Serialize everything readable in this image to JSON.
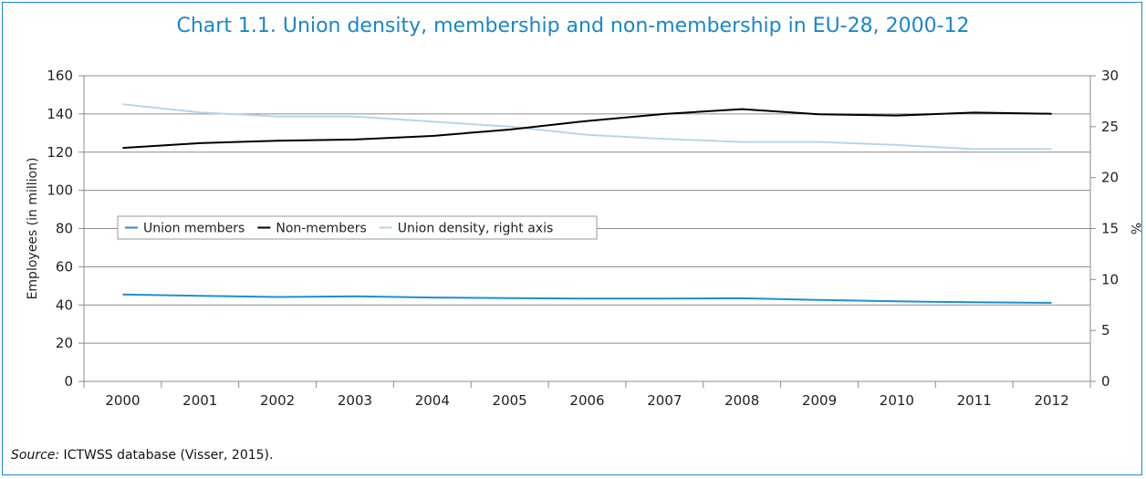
{
  "title": "Chart 1.1. Union density, membership and non-membership in EU-28, 2000-12",
  "source": {
    "label": "Source:",
    "text": " ICTWSS database (Visser, 2015)."
  },
  "colors": {
    "frame": "#1a86c8",
    "title": "#1a86c8",
    "union_members": "#1f8fd1",
    "non_members": "#000000",
    "union_density": "#b6d6ea",
    "grid": "#8c8c8c"
  },
  "chart_data": {
    "type": "line",
    "title": "Chart 1.1. Union density, membership and non-membership in EU-28, 2000-12",
    "categories": [
      "2000",
      "2001",
      "2002",
      "2003",
      "2004",
      "2005",
      "2006",
      "2007",
      "2008",
      "2009",
      "2010",
      "2011",
      "2012"
    ],
    "ylabel": "Employees (in million)",
    "y2label": "%",
    "ylim": [
      0,
      160
    ],
    "y2lim": [
      0,
      30
    ],
    "yticks": [
      "0",
      "20",
      "40",
      "60",
      "80",
      "100",
      "120",
      "140",
      "160"
    ],
    "y2ticks": [
      "0",
      "5",
      "10",
      "15",
      "20",
      "25",
      "30"
    ],
    "grid": true,
    "legend_position": "middle-left",
    "series": [
      {
        "name": "Union members",
        "axis": "left",
        "color": "#1f8fd1",
        "values": [
          45.5,
          44.8,
          44.2,
          44.5,
          43.9,
          43.6,
          43.3,
          43.3,
          43.5,
          42.6,
          41.9,
          41.4,
          41.1
        ]
      },
      {
        "name": "Non-members",
        "axis": "left",
        "color": "#000000",
        "values": [
          122.2,
          124.7,
          126.0,
          126.6,
          128.5,
          131.8,
          136.3,
          140.0,
          142.5,
          139.8,
          139.2,
          140.7,
          140.1
        ]
      },
      {
        "name": "Union density, right axis",
        "axis": "right",
        "color": "#b6d6ea",
        "values": [
          27.2,
          26.4,
          26.0,
          26.0,
          25.5,
          25.0,
          24.2,
          23.8,
          23.5,
          23.5,
          23.2,
          22.8,
          22.8
        ]
      }
    ]
  }
}
